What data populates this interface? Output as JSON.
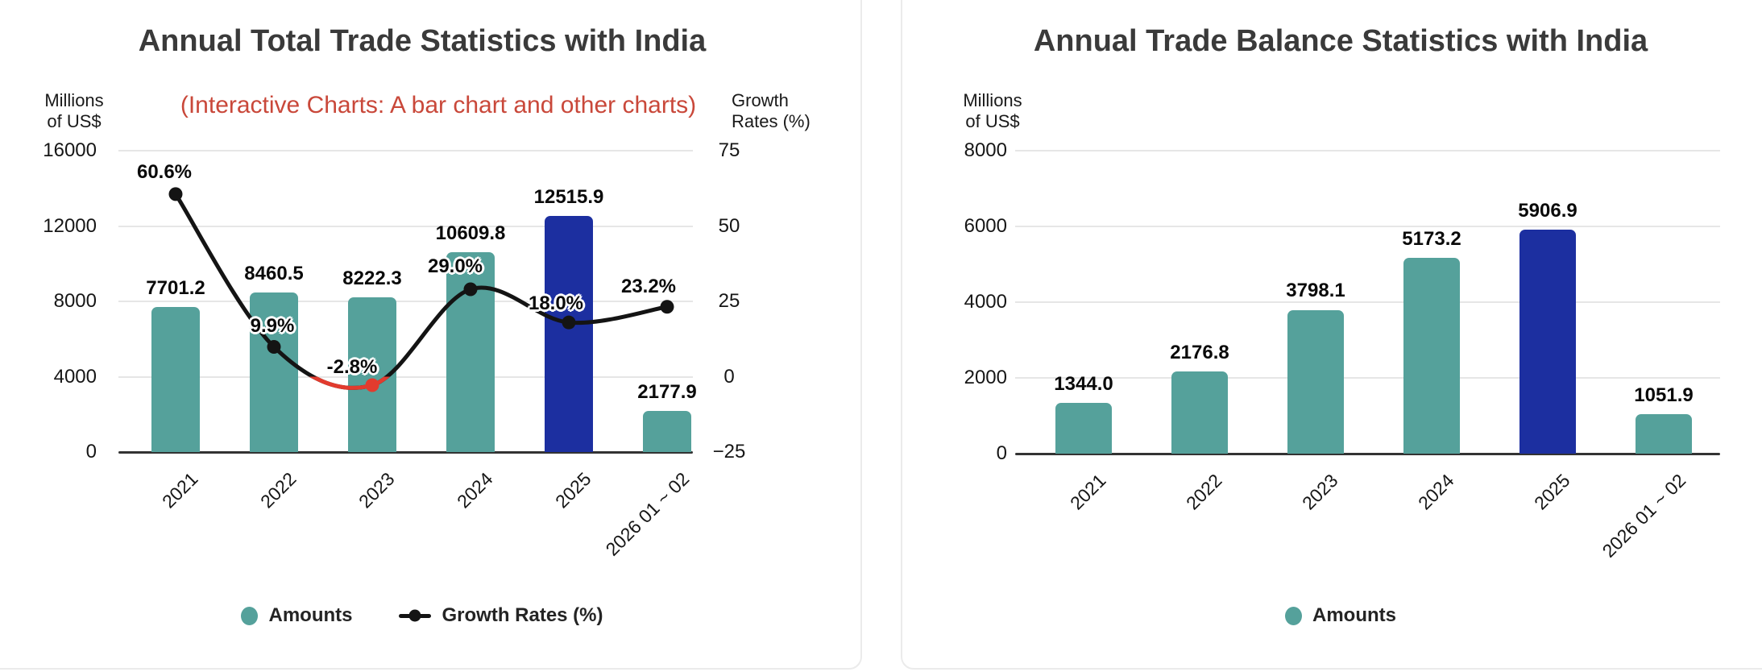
{
  "chart_data": [
    {
      "type": "bar",
      "title": "Annual Total Trade Statistics with India",
      "subtitle": "(Interactive Charts: A bar chart and other charts)",
      "categories": [
        "2021",
        "2022",
        "2023",
        "2024",
        "2025",
        "2026 01 ~ 02"
      ],
      "series": [
        {
          "name": "Amounts",
          "type": "bar",
          "axis": "left",
          "values": [
            7701.2,
            8460.5,
            8222.3,
            10609.8,
            12515.9,
            2177.9
          ],
          "color": "#55a19b",
          "highlight_color": "#1c2fa0",
          "highlight_index": 4,
          "legend_marker": "circle"
        },
        {
          "name": "Growth Rates (%)",
          "type": "line",
          "axis": "right",
          "values": [
            60.6,
            9.9,
            -2.8,
            29.0,
            18.0,
            23.2
          ],
          "color": "#141414",
          "negative_color": "#e23b2e",
          "negative_point_index": 2,
          "legend_marker": "line-dot"
        }
      ],
      "left_axis": {
        "label": "Millions of US$",
        "min": 0,
        "max": 16000,
        "ticks": [
          0,
          4000,
          8000,
          12000,
          16000
        ]
      },
      "right_axis": {
        "label": "Growth Rates (%)",
        "min": -25,
        "max": 75,
        "ticks": [
          -25,
          0,
          25,
          50,
          75
        ]
      },
      "left_axis_unit_lines": [
        "Millions",
        "of US$"
      ],
      "right_axis_unit_lines": [
        "Growth",
        "Rates (%)"
      ],
      "grid": true,
      "legend_position": "bottom",
      "value_label_decimals": 1
    },
    {
      "type": "bar",
      "title": "Annual Trade Balance Statistics with India",
      "categories": [
        "2021",
        "2022",
        "2023",
        "2024",
        "2025",
        "2026 01 ~ 02"
      ],
      "series": [
        {
          "name": "Amounts",
          "type": "bar",
          "axis": "left",
          "values": [
            1344.0,
            2176.8,
            3798.1,
            5173.2,
            5906.9,
            1051.9
          ],
          "color": "#55a19b",
          "highlight_color": "#1c2fa0",
          "highlight_index": 4,
          "legend_marker": "circle"
        }
      ],
      "left_axis": {
        "label": "Millions of US$",
        "min": 0,
        "max": 8000,
        "ticks": [
          0,
          2000,
          4000,
          6000,
          8000
        ]
      },
      "left_axis_unit_lines": [
        "Millions",
        "of US$"
      ],
      "grid": true,
      "legend_position": "bottom",
      "value_label_decimals": 1
    }
  ]
}
